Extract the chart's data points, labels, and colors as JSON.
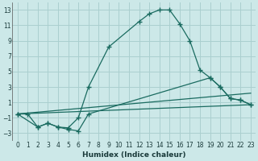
{
  "xlabel": "Humidex (Indice chaleur)",
  "background_color": "#cce8e8",
  "grid_color": "#aacfcf",
  "line_color": "#1a6b60",
  "xlim": [
    -0.5,
    23.5
  ],
  "ylim": [
    -4,
    14
  ],
  "xticks": [
    0,
    1,
    2,
    3,
    4,
    5,
    6,
    7,
    8,
    9,
    10,
    11,
    12,
    13,
    14,
    15,
    16,
    17,
    18,
    19,
    20,
    21,
    22,
    23
  ],
  "yticks": [
    -3,
    -1,
    1,
    3,
    5,
    7,
    9,
    11,
    13
  ],
  "series1_x": [
    0,
    1,
    2,
    3,
    4,
    5,
    6,
    7,
    9,
    12,
    13,
    14,
    15,
    16,
    17,
    18,
    19,
    20,
    21,
    22,
    23
  ],
  "series1_y": [
    -0.5,
    -0.5,
    -2.2,
    -1.7,
    -2.2,
    -2.3,
    -1.0,
    3.0,
    8.2,
    11.5,
    12.5,
    13.0,
    13.0,
    11.2,
    9.0,
    5.2,
    4.2,
    3.0,
    1.5,
    1.3,
    0.7
  ],
  "series2_x": [
    0,
    2,
    3,
    4,
    5,
    6,
    7,
    19,
    20,
    21,
    22,
    23
  ],
  "series2_y": [
    -0.5,
    -2.2,
    -1.7,
    -2.2,
    -2.5,
    -2.7,
    -0.5,
    4.2,
    3.0,
    1.5,
    1.3,
    0.7
  ],
  "series3_x": [
    0,
    23
  ],
  "series3_y": [
    -0.5,
    2.2
  ],
  "series4_x": [
    0,
    23
  ],
  "series4_y": [
    -0.5,
    0.7
  ]
}
